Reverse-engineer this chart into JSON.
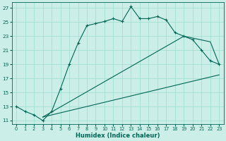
{
  "title": "",
  "xlabel": "Humidex (Indice chaleur)",
  "bg_color": "#cceee8",
  "grid_color": "#99ddcc",
  "line_color": "#006655",
  "xlim": [
    -0.5,
    23.5
  ],
  "ylim": [
    10.5,
    27.8
  ],
  "xticks": [
    0,
    1,
    2,
    3,
    4,
    5,
    6,
    7,
    8,
    9,
    10,
    11,
    12,
    13,
    14,
    15,
    16,
    17,
    18,
    19,
    20,
    21,
    22,
    23
  ],
  "yticks": [
    11,
    13,
    15,
    17,
    19,
    21,
    23,
    25,
    27
  ],
  "line1_x": [
    0,
    1,
    2,
    3,
    4,
    5,
    6,
    7,
    8,
    9,
    10,
    11,
    12,
    13,
    14,
    15,
    16,
    17,
    18,
    19,
    20,
    21,
    22,
    23
  ],
  "line1_y": [
    13.0,
    12.3,
    11.8,
    11.0,
    12.3,
    15.5,
    19.0,
    22.0,
    24.5,
    24.8,
    25.1,
    25.5,
    25.1,
    27.2,
    25.5,
    25.5,
    25.8,
    25.3,
    23.5,
    23.0,
    22.5,
    21.0,
    19.5,
    19.0
  ],
  "line2_x": [
    3,
    19,
    22,
    23
  ],
  "line2_y": [
    11.5,
    23.0,
    22.2,
    19.0
  ],
  "line3_x": [
    3,
    23
  ],
  "line3_y": [
    11.5,
    17.5
  ]
}
